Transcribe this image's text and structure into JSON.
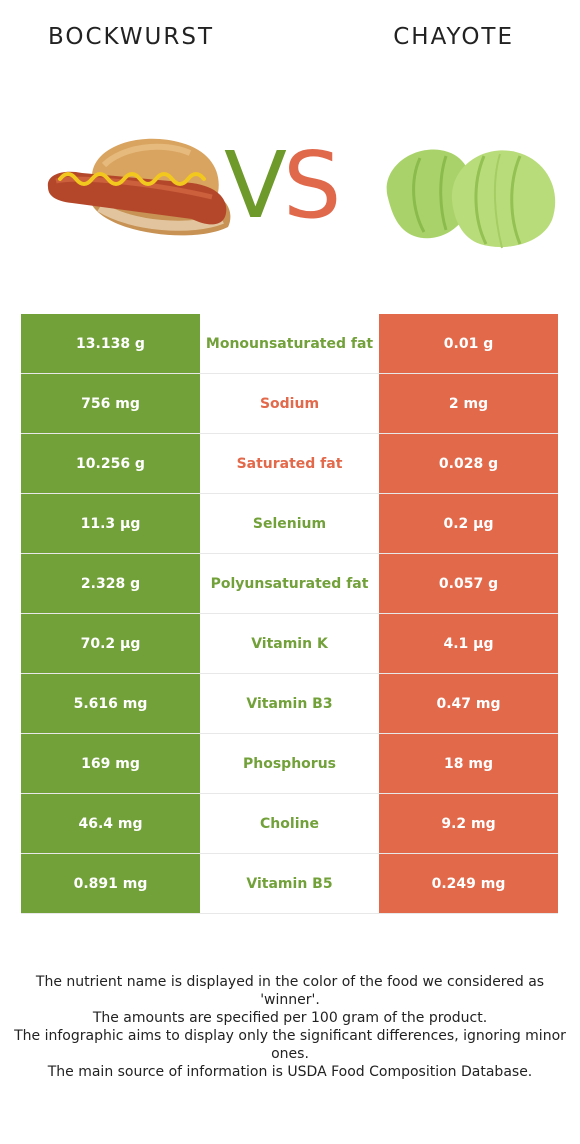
{
  "header": {
    "left_food": "BOCKWURST",
    "right_food": "CHAYOTE",
    "vs_v": "V",
    "vs_s": "S"
  },
  "colors": {
    "winner_left": "#72a13a",
    "winner_right": "#e3694b"
  },
  "chart_data": {
    "type": "table",
    "columns": [
      "BOCKWURST",
      "nutrient",
      "CHAYOTE"
    ],
    "rows": [
      {
        "left": "13.138 g",
        "nutrient": "Monounsaturated fat",
        "right": "0.01 g",
        "winner": "left"
      },
      {
        "left": "756 mg",
        "nutrient": "Sodium",
        "right": "2 mg",
        "winner": "right"
      },
      {
        "left": "10.256 g",
        "nutrient": "Saturated fat",
        "right": "0.028 g",
        "winner": "right"
      },
      {
        "left": "11.3 µg",
        "nutrient": "Selenium",
        "right": "0.2 µg",
        "winner": "left"
      },
      {
        "left": "2.328 g",
        "nutrient": "Polyunsaturated fat",
        "right": "0.057 g",
        "winner": "left"
      },
      {
        "left": "70.2 µg",
        "nutrient": "Vitamin K",
        "right": "4.1 µg",
        "winner": "left"
      },
      {
        "left": "5.616 mg",
        "nutrient": "Vitamin B3",
        "right": "0.47 mg",
        "winner": "left"
      },
      {
        "left": "169 mg",
        "nutrient": "Phosphorus",
        "right": "18 mg",
        "winner": "left"
      },
      {
        "left": "46.4 mg",
        "nutrient": "Choline",
        "right": "9.2 mg",
        "winner": "left"
      },
      {
        "left": "0.891 mg",
        "nutrient": "Vitamin B5",
        "right": "0.249 mg",
        "winner": "left"
      }
    ]
  },
  "footer": {
    "lines": [
      "The nutrient name is displayed in the color of the food we considered as 'winner'.",
      "The amounts are specified per 100 gram of the product.",
      "The infographic aims to display only the significant differences, ignoring minor ones.",
      "The main source of information is USDA Food Composition Database."
    ]
  }
}
